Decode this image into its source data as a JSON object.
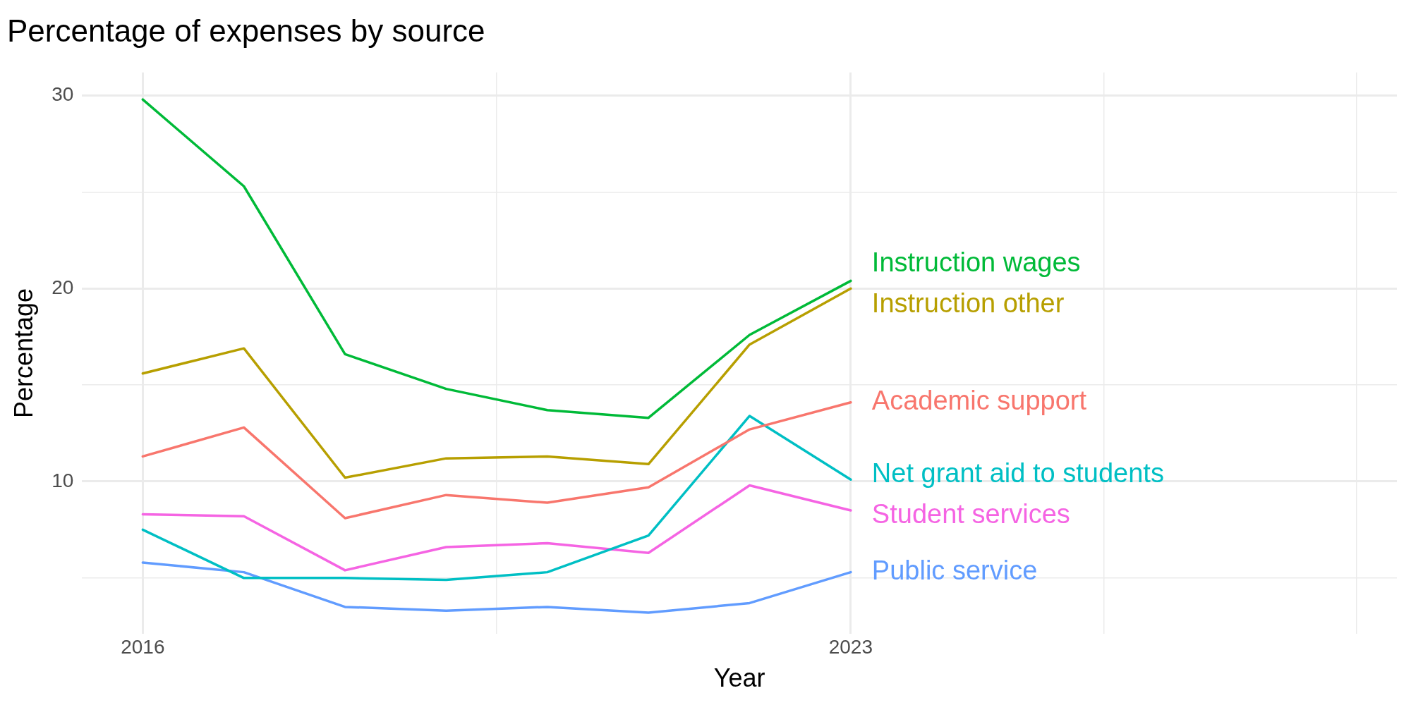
{
  "chart_data": {
    "type": "line",
    "title": "Percentage of expenses by source",
    "xlabel": "Year",
    "ylabel": "Percentage",
    "x": [
      2016,
      2017,
      2018,
      2019,
      2020,
      2021,
      2022,
      2023
    ],
    "series": [
      {
        "name": "Instruction wages",
        "color": "#00ba38",
        "values": [
          29.8,
          25.3,
          16.6,
          14.8,
          13.7,
          13.3,
          17.6,
          20.4
        ]
      },
      {
        "name": "Instruction other",
        "color": "#b79f00",
        "values": [
          15.6,
          16.9,
          10.2,
          11.2,
          11.3,
          10.9,
          17.1,
          20.0
        ]
      },
      {
        "name": "Academic support",
        "color": "#f8766d",
        "values": [
          11.3,
          12.8,
          8.1,
          9.3,
          8.9,
          9.7,
          12.7,
          14.1
        ]
      },
      {
        "name": "Net grant aid to students",
        "color": "#00bfc4",
        "values": [
          7.5,
          5.0,
          5.0,
          4.9,
          5.3,
          7.2,
          13.4,
          10.1
        ]
      },
      {
        "name": "Student services",
        "color": "#f564e3",
        "values": [
          8.3,
          8.2,
          5.4,
          6.6,
          6.8,
          6.3,
          9.8,
          8.5
        ]
      },
      {
        "name": "Public service",
        "color": "#619cff",
        "values": [
          5.8,
          5.3,
          3.5,
          3.3,
          3.5,
          3.2,
          3.7,
          5.3
        ]
      }
    ],
    "xlim": [
      2015.4,
      2028.4
    ],
    "xticks": [
      2016,
      {
        "value": 2019.5,
        "label": null
      },
      2023,
      {
        "value": 2025.5,
        "label": null
      },
      {
        "value": 2028,
        "label": null
      }
    ],
    "ylim": [
      2.1,
      31.2
    ],
    "yticks": [
      {
        "value": 5,
        "label": null
      },
      10,
      {
        "value": 15,
        "label": null
      },
      20,
      {
        "value": 25,
        "label": null
      },
      30
    ],
    "grid": true,
    "legend": false,
    "marker": "none",
    "line_style": "solid"
  }
}
